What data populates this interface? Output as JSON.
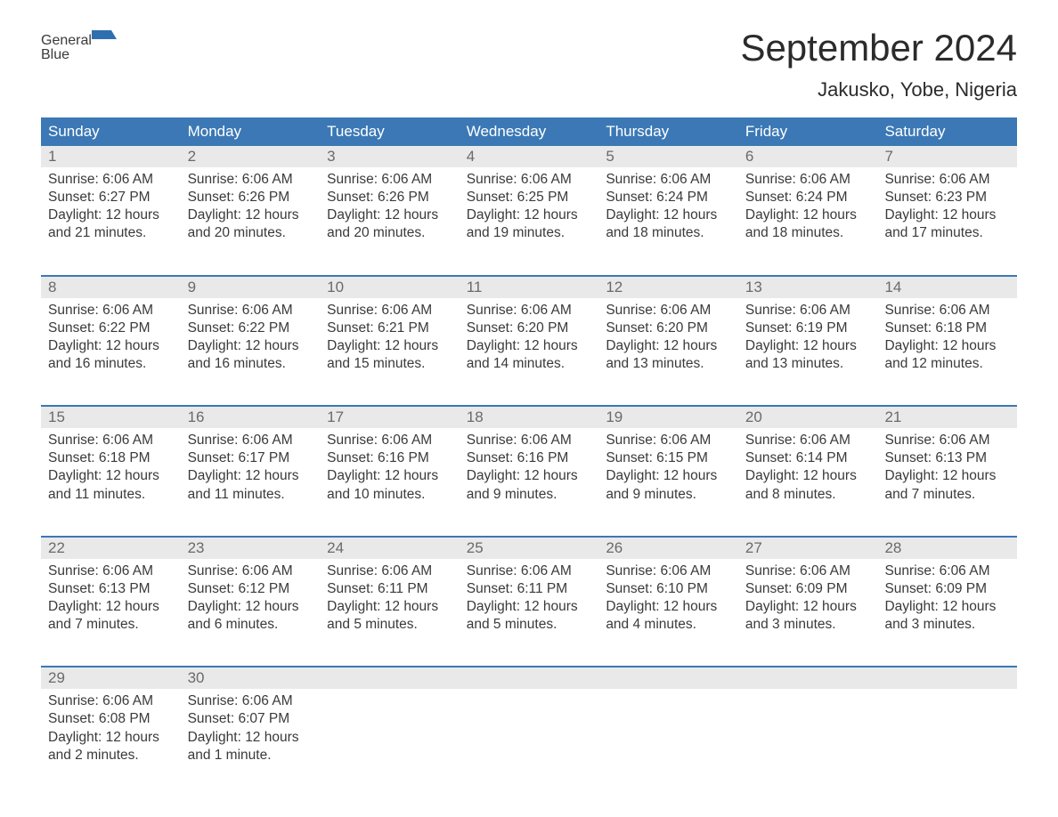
{
  "brand": {
    "part1": "General",
    "part2": "Blue"
  },
  "title": "September 2024",
  "location": "Jakusko, Yobe, Nigeria",
  "colors": {
    "header_bg": "#3b78b5",
    "header_text": "#ffffff",
    "daynum_bg": "#e9e9e9",
    "daynum_text": "#6a6a6a",
    "body_text": "#3a3a3a",
    "rule": "#3b78b5",
    "brand_blue": "#2f6fb0"
  },
  "dow": [
    "Sunday",
    "Monday",
    "Tuesday",
    "Wednesday",
    "Thursday",
    "Friday",
    "Saturday"
  ],
  "weeks": [
    [
      {
        "n": "1",
        "sunrise": "Sunrise: 6:06 AM",
        "sunset": "Sunset: 6:27 PM",
        "day1": "Daylight: 12 hours",
        "day2": "and 21 minutes."
      },
      {
        "n": "2",
        "sunrise": "Sunrise: 6:06 AM",
        "sunset": "Sunset: 6:26 PM",
        "day1": "Daylight: 12 hours",
        "day2": "and 20 minutes."
      },
      {
        "n": "3",
        "sunrise": "Sunrise: 6:06 AM",
        "sunset": "Sunset: 6:26 PM",
        "day1": "Daylight: 12 hours",
        "day2": "and 20 minutes."
      },
      {
        "n": "4",
        "sunrise": "Sunrise: 6:06 AM",
        "sunset": "Sunset: 6:25 PM",
        "day1": "Daylight: 12 hours",
        "day2": "and 19 minutes."
      },
      {
        "n": "5",
        "sunrise": "Sunrise: 6:06 AM",
        "sunset": "Sunset: 6:24 PM",
        "day1": "Daylight: 12 hours",
        "day2": "and 18 minutes."
      },
      {
        "n": "6",
        "sunrise": "Sunrise: 6:06 AM",
        "sunset": "Sunset: 6:24 PM",
        "day1": "Daylight: 12 hours",
        "day2": "and 18 minutes."
      },
      {
        "n": "7",
        "sunrise": "Sunrise: 6:06 AM",
        "sunset": "Sunset: 6:23 PM",
        "day1": "Daylight: 12 hours",
        "day2": "and 17 minutes."
      }
    ],
    [
      {
        "n": "8",
        "sunrise": "Sunrise: 6:06 AM",
        "sunset": "Sunset: 6:22 PM",
        "day1": "Daylight: 12 hours",
        "day2": "and 16 minutes."
      },
      {
        "n": "9",
        "sunrise": "Sunrise: 6:06 AM",
        "sunset": "Sunset: 6:22 PM",
        "day1": "Daylight: 12 hours",
        "day2": "and 16 minutes."
      },
      {
        "n": "10",
        "sunrise": "Sunrise: 6:06 AM",
        "sunset": "Sunset: 6:21 PM",
        "day1": "Daylight: 12 hours",
        "day2": "and 15 minutes."
      },
      {
        "n": "11",
        "sunrise": "Sunrise: 6:06 AM",
        "sunset": "Sunset: 6:20 PM",
        "day1": "Daylight: 12 hours",
        "day2": "and 14 minutes."
      },
      {
        "n": "12",
        "sunrise": "Sunrise: 6:06 AM",
        "sunset": "Sunset: 6:20 PM",
        "day1": "Daylight: 12 hours",
        "day2": "and 13 minutes."
      },
      {
        "n": "13",
        "sunrise": "Sunrise: 6:06 AM",
        "sunset": "Sunset: 6:19 PM",
        "day1": "Daylight: 12 hours",
        "day2": "and 13 minutes."
      },
      {
        "n": "14",
        "sunrise": "Sunrise: 6:06 AM",
        "sunset": "Sunset: 6:18 PM",
        "day1": "Daylight: 12 hours",
        "day2": "and 12 minutes."
      }
    ],
    [
      {
        "n": "15",
        "sunrise": "Sunrise: 6:06 AM",
        "sunset": "Sunset: 6:18 PM",
        "day1": "Daylight: 12 hours",
        "day2": "and 11 minutes."
      },
      {
        "n": "16",
        "sunrise": "Sunrise: 6:06 AM",
        "sunset": "Sunset: 6:17 PM",
        "day1": "Daylight: 12 hours",
        "day2": "and 11 minutes."
      },
      {
        "n": "17",
        "sunrise": "Sunrise: 6:06 AM",
        "sunset": "Sunset: 6:16 PM",
        "day1": "Daylight: 12 hours",
        "day2": "and 10 minutes."
      },
      {
        "n": "18",
        "sunrise": "Sunrise: 6:06 AM",
        "sunset": "Sunset: 6:16 PM",
        "day1": "Daylight: 12 hours",
        "day2": "and 9 minutes."
      },
      {
        "n": "19",
        "sunrise": "Sunrise: 6:06 AM",
        "sunset": "Sunset: 6:15 PM",
        "day1": "Daylight: 12 hours",
        "day2": "and 9 minutes."
      },
      {
        "n": "20",
        "sunrise": "Sunrise: 6:06 AM",
        "sunset": "Sunset: 6:14 PM",
        "day1": "Daylight: 12 hours",
        "day2": "and 8 minutes."
      },
      {
        "n": "21",
        "sunrise": "Sunrise: 6:06 AM",
        "sunset": "Sunset: 6:13 PM",
        "day1": "Daylight: 12 hours",
        "day2": "and 7 minutes."
      }
    ],
    [
      {
        "n": "22",
        "sunrise": "Sunrise: 6:06 AM",
        "sunset": "Sunset: 6:13 PM",
        "day1": "Daylight: 12 hours",
        "day2": "and 7 minutes."
      },
      {
        "n": "23",
        "sunrise": "Sunrise: 6:06 AM",
        "sunset": "Sunset: 6:12 PM",
        "day1": "Daylight: 12 hours",
        "day2": "and 6 minutes."
      },
      {
        "n": "24",
        "sunrise": "Sunrise: 6:06 AM",
        "sunset": "Sunset: 6:11 PM",
        "day1": "Daylight: 12 hours",
        "day2": "and 5 minutes."
      },
      {
        "n": "25",
        "sunrise": "Sunrise: 6:06 AM",
        "sunset": "Sunset: 6:11 PM",
        "day1": "Daylight: 12 hours",
        "day2": "and 5 minutes."
      },
      {
        "n": "26",
        "sunrise": "Sunrise: 6:06 AM",
        "sunset": "Sunset: 6:10 PM",
        "day1": "Daylight: 12 hours",
        "day2": "and 4 minutes."
      },
      {
        "n": "27",
        "sunrise": "Sunrise: 6:06 AM",
        "sunset": "Sunset: 6:09 PM",
        "day1": "Daylight: 12 hours",
        "day2": "and 3 minutes."
      },
      {
        "n": "28",
        "sunrise": "Sunrise: 6:06 AM",
        "sunset": "Sunset: 6:09 PM",
        "day1": "Daylight: 12 hours",
        "day2": "and 3 minutes."
      }
    ],
    [
      {
        "n": "29",
        "sunrise": "Sunrise: 6:06 AM",
        "sunset": "Sunset: 6:08 PM",
        "day1": "Daylight: 12 hours",
        "day2": "and 2 minutes."
      },
      {
        "n": "30",
        "sunrise": "Sunrise: 6:06 AM",
        "sunset": "Sunset: 6:07 PM",
        "day1": "Daylight: 12 hours",
        "day2": "and 1 minute."
      },
      {
        "n": "",
        "sunrise": "",
        "sunset": "",
        "day1": "",
        "day2": ""
      },
      {
        "n": "",
        "sunrise": "",
        "sunset": "",
        "day1": "",
        "day2": ""
      },
      {
        "n": "",
        "sunrise": "",
        "sunset": "",
        "day1": "",
        "day2": ""
      },
      {
        "n": "",
        "sunrise": "",
        "sunset": "",
        "day1": "",
        "day2": ""
      },
      {
        "n": "",
        "sunrise": "",
        "sunset": "",
        "day1": "",
        "day2": ""
      }
    ]
  ]
}
